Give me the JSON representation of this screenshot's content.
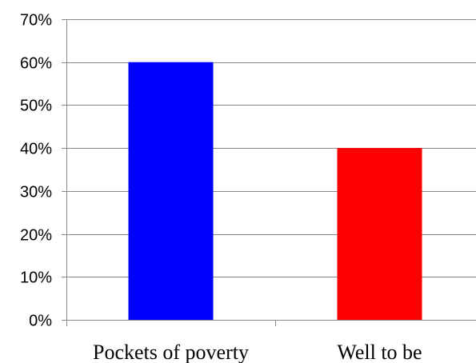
{
  "chart_data": {
    "type": "bar",
    "title": "",
    "xlabel": "",
    "ylabel": "",
    "categories": [
      "Pockets of poverty",
      "Well to be"
    ],
    "values": [
      60,
      40
    ],
    "value_unit": "%",
    "colors": [
      "#0000ff",
      "#ff0000"
    ],
    "ylim": [
      0,
      70
    ],
    "yticks": [
      0,
      10,
      20,
      30,
      40,
      50,
      60,
      70
    ],
    "ytick_labels": [
      "0%",
      "10%",
      "20%",
      "30%",
      "40%",
      "50%",
      "60%",
      "70%"
    ],
    "grid": true,
    "legend": "none"
  }
}
